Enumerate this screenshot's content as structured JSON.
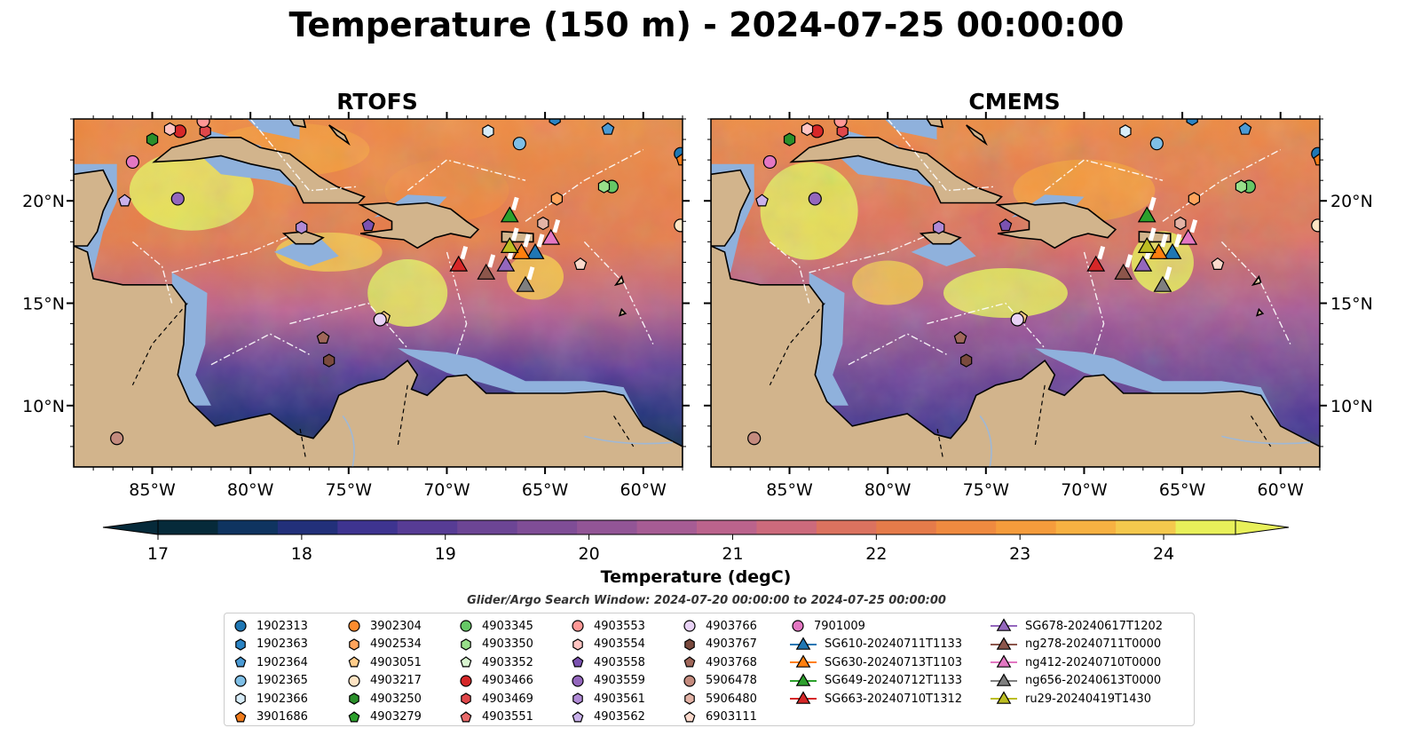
{
  "title": "Temperature (150 m) - 2024-07-25 00:00:00",
  "panels": [
    {
      "title": "RTOFS"
    },
    {
      "title": "CMEMS"
    }
  ],
  "chart_data": {
    "type": "heatmap",
    "variable": "Temperature (150 m)",
    "colorbar": {
      "label": "Temperature (degC)",
      "range": [
        17,
        24.5
      ],
      "ticks": [
        "17",
        "18",
        "19",
        "20",
        "21",
        "22",
        "23",
        "24"
      ],
      "colors": [
        "#062a3a",
        "#0f3460",
        "#22307a",
        "#3e3490",
        "#573c95",
        "#6c4595",
        "#7f4d96",
        "#925596",
        "#a65c94",
        "#bb638c",
        "#cc6a7c",
        "#db725f",
        "#e57b4a",
        "#ef8a40",
        "#f59c3c",
        "#f7b142",
        "#f4c84d",
        "#e8f05a"
      ]
    },
    "map": {
      "lon_ticks": [
        "85°W",
        "80°W",
        "75°W",
        "70°W",
        "65°W",
        "60°W"
      ],
      "lat_ticks": [
        "20°N",
        "15°N",
        "10°N"
      ],
      "lon_range": [
        -89,
        -58
      ],
      "lat_range": [
        7,
        24
      ]
    },
    "search_window": "Glider/Argo Search Window: 2024-07-20 00:00:00 to 2024-07-25 00:00:00",
    "legend": [
      {
        "label": "1902313",
        "marker": "circle",
        "color": "#1f77b4"
      },
      {
        "label": "1902363",
        "marker": "hexagon",
        "color": "#2b84c4"
      },
      {
        "label": "1902364",
        "marker": "pentagon",
        "color": "#4a9ad4"
      },
      {
        "label": "1902365",
        "marker": "circle",
        "color": "#7fbfe6"
      },
      {
        "label": "1902366",
        "marker": "hexagon",
        "color": "#d7ecf8"
      },
      {
        "label": "3901686",
        "marker": "pentagon",
        "color": "#f07b1a"
      },
      {
        "label": "3902304",
        "marker": "circle",
        "color": "#ff8c2e"
      },
      {
        "label": "4902534",
        "marker": "hexagon",
        "color": "#ffa45c"
      },
      {
        "label": "4903051",
        "marker": "pentagon",
        "color": "#ffcc8a"
      },
      {
        "label": "4903217",
        "marker": "circle",
        "color": "#ffe4c4"
      },
      {
        "label": "4903250",
        "marker": "hexagon",
        "color": "#2a8f2a"
      },
      {
        "label": "4903279",
        "marker": "pentagon",
        "color": "#2ca02c"
      },
      {
        "label": "4903345",
        "marker": "circle",
        "color": "#66c766"
      },
      {
        "label": "4903350",
        "marker": "hexagon",
        "color": "#98df8a"
      },
      {
        "label": "4903352",
        "marker": "pentagon",
        "color": "#d9f5d0"
      },
      {
        "label": "4903466",
        "marker": "circle",
        "color": "#d62728"
      },
      {
        "label": "4903469",
        "marker": "hexagon",
        "color": "#e0474a"
      },
      {
        "label": "4903551",
        "marker": "pentagon",
        "color": "#e86a6a"
      },
      {
        "label": "4903553",
        "marker": "circle",
        "color": "#ff9896"
      },
      {
        "label": "4903554",
        "marker": "hexagon",
        "color": "#ffc4c2"
      },
      {
        "label": "4903558",
        "marker": "pentagon",
        "color": "#7b52b0"
      },
      {
        "label": "4903559",
        "marker": "circle",
        "color": "#9467bd"
      },
      {
        "label": "4903561",
        "marker": "hexagon",
        "color": "#b08ad6"
      },
      {
        "label": "4903562",
        "marker": "pentagon",
        "color": "#c9b1ea"
      },
      {
        "label": "4903766",
        "marker": "circle",
        "color": "#e8d2f5"
      },
      {
        "label": "4903767",
        "marker": "hexagon",
        "color": "#7a4a3e"
      },
      {
        "label": "4903768",
        "marker": "pentagon",
        "color": "#a0675a"
      },
      {
        "label": "5906478",
        "marker": "circle",
        "color": "#c48b7e"
      },
      {
        "label": "5906480",
        "marker": "hexagon",
        "color": "#e3b3a6"
      },
      {
        "label": "6903111",
        "marker": "pentagon",
        "color": "#fbd9cc"
      },
      {
        "label": "7901009",
        "marker": "circle",
        "color": "#e377c2"
      },
      {
        "label": "SG610-20240711T1133",
        "marker": "triangle-line",
        "color": "#1f77b4"
      },
      {
        "label": "SG630-20240713T1103",
        "marker": "triangle-line",
        "color": "#ff7f0e"
      },
      {
        "label": "SG649-20240712T1133",
        "marker": "triangle-line",
        "color": "#2ca02c"
      },
      {
        "label": "SG663-20240710T1312",
        "marker": "triangle-line",
        "color": "#d62728"
      },
      {
        "label": "SG678-20240617T1202",
        "marker": "triangle-line",
        "color": "#9467bd"
      },
      {
        "label": "ng278-20240711T0000",
        "marker": "triangle-line",
        "color": "#8c564b"
      },
      {
        "label": "ng412-20240710T0000",
        "marker": "triangle-line",
        "color": "#e377c2"
      },
      {
        "label": "ng656-20240613T0000",
        "marker": "triangle-line",
        "color": "#7f7f7f"
      },
      {
        "label": "ru29-20240419T1430",
        "marker": "triangle-line",
        "color": "#bcbd22"
      }
    ],
    "gliders": [
      {
        "label": "SG610-20240711T1133",
        "lon": -65.5,
        "lat": 17.5
      },
      {
        "label": "SG630-20240713T1103",
        "lon": -66.2,
        "lat": 17.5
      },
      {
        "label": "SG649-20240712T1133",
        "lon": -66.8,
        "lat": 19.3
      },
      {
        "label": "SG663-20240710T1312",
        "lon": -69.4,
        "lat": 16.9
      },
      {
        "label": "SG678-20240617T1202",
        "lon": -67.0,
        "lat": 16.9
      },
      {
        "label": "ng278-20240711T0000",
        "lon": -68.0,
        "lat": 16.5
      },
      {
        "label": "ng412-20240710T0000",
        "lon": -64.7,
        "lat": 18.2
      },
      {
        "label": "ng656-20240613T0000",
        "lon": -66.0,
        "lat": 15.9
      },
      {
        "label": "ru29-20240419T1430",
        "lon": -66.8,
        "lat": 17.8
      }
    ],
    "floats": [
      {
        "label": "1902313",
        "lon": -58.1,
        "lat": 22.3
      },
      {
        "label": "1902363",
        "lon": -64.5,
        "lat": 24.0
      },
      {
        "label": "1902364",
        "lon": -61.8,
        "lat": 23.5
      },
      {
        "label": "1902365",
        "lon": -66.3,
        "lat": 22.8
      },
      {
        "label": "1902366",
        "lon": -67.9,
        "lat": 23.4
      },
      {
        "label": "3901686",
        "lon": -58.0,
        "lat": 22.0
      },
      {
        "label": "4902534",
        "lon": -64.4,
        "lat": 20.1
      },
      {
        "label": "4903051",
        "lon": -73.2,
        "lat": 14.3
      },
      {
        "label": "4903217",
        "lon": -58.1,
        "lat": 18.8
      },
      {
        "label": "4903250",
        "lon": -85.0,
        "lat": 23.0
      },
      {
        "label": "4903345",
        "lon": -61.6,
        "lat": 20.7
      },
      {
        "label": "4903350",
        "lon": -62.0,
        "lat": 20.7
      },
      {
        "label": "4903466",
        "lon": -83.6,
        "lat": 23.4
      },
      {
        "label": "4903469",
        "lon": -82.3,
        "lat": 23.4
      },
      {
        "label": "4903553",
        "lon": -82.4,
        "lat": 23.9
      },
      {
        "label": "4903554",
        "lon": -84.1,
        "lat": 23.5
      },
      {
        "label": "4903558",
        "lon": -74.0,
        "lat": 18.8
      },
      {
        "label": "4903559",
        "lon": -83.7,
        "lat": 20.1
      },
      {
        "label": "4903561",
        "lon": -77.4,
        "lat": 18.7
      },
      {
        "label": "4903562",
        "lon": -86.4,
        "lat": 20.0
      },
      {
        "label": "4903766",
        "lon": -73.4,
        "lat": 14.2
      },
      {
        "label": "4903767",
        "lon": -76.0,
        "lat": 12.2
      },
      {
        "label": "4903768",
        "lon": -76.3,
        "lat": 13.3
      },
      {
        "label": "5906478",
        "lon": -86.8,
        "lat": 8.4
      },
      {
        "label": "5906480",
        "lon": -65.1,
        "lat": 18.9
      },
      {
        "label": "6903111",
        "lon": -63.2,
        "lat": 16.9
      },
      {
        "label": "7901009",
        "lon": -86.0,
        "lat": 21.9
      }
    ]
  }
}
